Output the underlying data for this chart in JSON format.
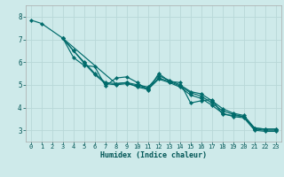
{
  "xlabel": "Humidex (Indice chaleur)",
  "bg_color": "#ceeaea",
  "grid_color": "#b8d8d8",
  "line_color": "#006b6b",
  "xlim": [
    -0.5,
    23.5
  ],
  "ylim": [
    2.5,
    8.5
  ],
  "xticks": [
    0,
    1,
    2,
    3,
    4,
    5,
    6,
    7,
    8,
    9,
    10,
    11,
    12,
    13,
    14,
    15,
    16,
    17,
    18,
    19,
    20,
    21,
    22,
    23
  ],
  "yticks": [
    3,
    4,
    5,
    6,
    7,
    8
  ],
  "series": [
    {
      "x": [
        0,
        1,
        3,
        4,
        5,
        6,
        7,
        8,
        9,
        10,
        11,
        12,
        13,
        14,
        15,
        16,
        17,
        18,
        19,
        20,
        21,
        22,
        23
      ],
      "y": [
        7.85,
        7.7,
        7.05,
        6.2,
        5.85,
        5.8,
        4.95,
        5.3,
        5.35,
        5.1,
        4.75,
        5.5,
        5.15,
        5.1,
        4.2,
        4.3,
        4.35,
        3.7,
        3.65,
        3.6,
        3.1,
        3.05,
        3.05
      ]
    },
    {
      "x": [
        3,
        4,
        5,
        6,
        7,
        8,
        9,
        10,
        11,
        12,
        13,
        14,
        15,
        16,
        17,
        18,
        19,
        20,
        21,
        22,
        23
      ],
      "y": [
        7.05,
        6.5,
        6.0,
        5.5,
        5.1,
        5.05,
        5.1,
        5.0,
        4.9,
        5.4,
        5.2,
        5.0,
        4.7,
        4.6,
        4.3,
        3.95,
        3.75,
        3.65,
        3.1,
        3.05,
        3.05
      ]
    },
    {
      "x": [
        3,
        4,
        5,
        6,
        7,
        8,
        9,
        10,
        11,
        12,
        13,
        14,
        15,
        16,
        17,
        18,
        19,
        20,
        21,
        22,
        23
      ],
      "y": [
        7.05,
        6.5,
        5.95,
        5.45,
        5.05,
        5.0,
        5.05,
        4.95,
        4.85,
        5.3,
        5.15,
        4.95,
        4.65,
        4.5,
        4.2,
        3.85,
        3.7,
        3.6,
        3.05,
        3.0,
        3.0
      ]
    },
    {
      "x": [
        3,
        8,
        9,
        10,
        11,
        12,
        13,
        14,
        15,
        16,
        17,
        18,
        19,
        20,
        21,
        22,
        23
      ],
      "y": [
        7.05,
        5.05,
        5.1,
        4.9,
        4.8,
        5.25,
        5.1,
        4.9,
        4.55,
        4.4,
        4.1,
        3.75,
        3.6,
        3.55,
        3.0,
        2.95,
        2.95
      ]
    }
  ],
  "tick_fontsize": 5.0,
  "xlabel_fontsize": 6.0,
  "marker_size": 2.2,
  "linewidth": 0.85
}
